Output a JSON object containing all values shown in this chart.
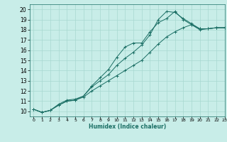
{
  "title": "",
  "xlabel": "Humidex (Indice chaleur)",
  "ylabel": "",
  "bg_color": "#c8ede8",
  "grid_color": "#a8d8d0",
  "line_color": "#1a6e64",
  "xlim": [
    -0.5,
    23
  ],
  "ylim": [
    9.5,
    20.5
  ],
  "xticks": [
    0,
    1,
    2,
    3,
    4,
    5,
    6,
    7,
    8,
    9,
    10,
    11,
    12,
    13,
    14,
    15,
    16,
    17,
    18,
    19,
    20,
    21,
    22,
    23
  ],
  "yticks": [
    10,
    11,
    12,
    13,
    14,
    15,
    16,
    17,
    18,
    19,
    20
  ],
  "series": [
    {
      "x": [
        0,
        1,
        2,
        3,
        4,
        5,
        6,
        7,
        8,
        9,
        10,
        11,
        12,
        13,
        14,
        15,
        16,
        17,
        18,
        19,
        20,
        21,
        22,
        23
      ],
      "y": [
        10.2,
        9.9,
        10.1,
        10.6,
        11.0,
        11.1,
        11.5,
        12.5,
        13.3,
        14.1,
        15.3,
        16.3,
        16.7,
        16.7,
        17.8,
        18.7,
        19.1,
        19.8,
        19.0,
        18.5,
        18.1,
        18.1,
        18.2,
        18.2
      ],
      "marker": "+"
    },
    {
      "x": [
        0,
        1,
        2,
        3,
        4,
        5,
        6,
        7,
        8,
        9,
        10,
        11,
        12,
        13,
        14,
        15,
        16,
        17,
        18,
        19,
        20,
        21,
        22,
        23
      ],
      "y": [
        10.2,
        9.9,
        10.1,
        10.7,
        11.1,
        11.2,
        11.5,
        12.4,
        13.0,
        13.6,
        14.5,
        15.2,
        15.8,
        16.5,
        17.5,
        19.0,
        19.8,
        19.7,
        19.1,
        18.6,
        18.1,
        18.1,
        18.2,
        18.2
      ],
      "marker": "+"
    },
    {
      "x": [
        0,
        1,
        2,
        3,
        4,
        5,
        6,
        7,
        8,
        9,
        10,
        11,
        12,
        13,
        14,
        15,
        16,
        17,
        18,
        19,
        20,
        21,
        22,
        23
      ],
      "y": [
        10.2,
        9.9,
        10.1,
        10.6,
        11.0,
        11.1,
        11.4,
        12.0,
        12.5,
        13.0,
        13.5,
        14.0,
        14.5,
        15.0,
        15.8,
        16.6,
        17.3,
        17.8,
        18.2,
        18.5,
        18.0,
        18.1,
        18.2,
        18.2
      ],
      "marker": "+"
    }
  ]
}
